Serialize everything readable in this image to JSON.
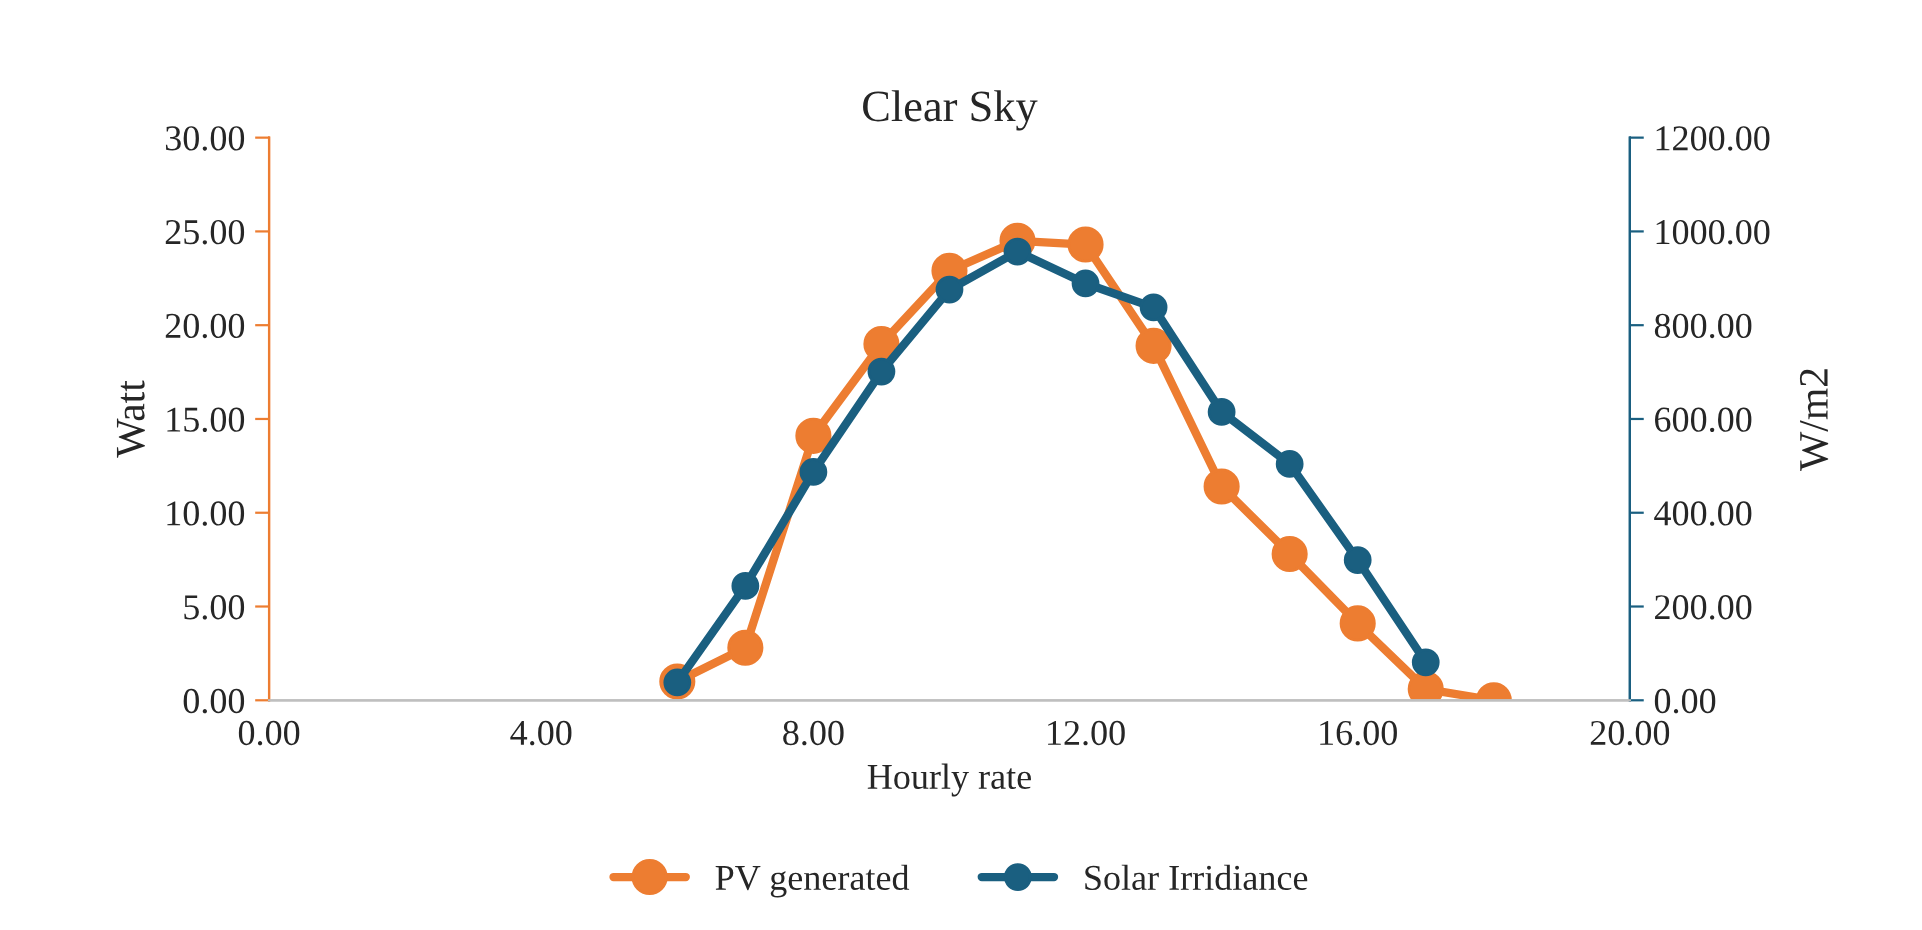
{
  "chart_data": {
    "type": "line",
    "title": "Clear Sky",
    "xlabel": "Hourly rate",
    "ylabel": "Watt",
    "y2label": "W/m2",
    "x": [
      6,
      7,
      8,
      9,
      10,
      11,
      12,
      13,
      14,
      15,
      16,
      17,
      18
    ],
    "series": [
      {
        "name": "PV generated",
        "color": "#ed7d31",
        "values": [
          1.0,
          2.8,
          14.1,
          19.0,
          22.9,
          24.5,
          24.3,
          18.9,
          11.4,
          7.8,
          4.1,
          0.6,
          0.0
        ]
      },
      {
        "name": "Solar Irridiance",
        "color": "#1a5f80",
        "axis": "y2",
        "x": [
          6,
          7,
          8,
          9,
          10,
          11,
          12,
          13,
          14,
          15,
          16,
          17
        ],
        "values": [
          38,
          244,
          487,
          701,
          876,
          957,
          889,
          838,
          615,
          504,
          299,
          81
        ]
      }
    ],
    "xlim": [
      0,
      20
    ],
    "xticks": [
      {
        "value": 0,
        "label": "0.00"
      },
      {
        "value": 4,
        "label": "4.00"
      },
      {
        "value": 8,
        "label": "8.00"
      },
      {
        "value": 12,
        "label": "12.00"
      },
      {
        "value": 16,
        "label": "16.00"
      },
      {
        "value": 20,
        "label": "20.00"
      }
    ],
    "ylim": [
      0,
      30
    ],
    "yticks": [
      {
        "value": 0,
        "label": "0.00"
      },
      {
        "value": 5,
        "label": "5.00"
      },
      {
        "value": 10,
        "label": "10.00"
      },
      {
        "value": 15,
        "label": "15.00"
      },
      {
        "value": 20,
        "label": "20.00"
      },
      {
        "value": 25,
        "label": "25.00"
      },
      {
        "value": 30,
        "label": "30.00"
      }
    ],
    "y2lim": [
      0,
      1200
    ],
    "y2ticks": [
      {
        "value": 0,
        "label": "0.00"
      },
      {
        "value": 200,
        "label": "200.00"
      },
      {
        "value": 400,
        "label": "400.00"
      },
      {
        "value": 600,
        "label": "600.00"
      },
      {
        "value": 800,
        "label": "800.00"
      },
      {
        "value": 1000,
        "label": "1000.00"
      },
      {
        "value": 1200,
        "label": "1200.00"
      }
    ],
    "grid": false,
    "legend": "bottom",
    "marker": "circle",
    "line_style": "solid"
  }
}
